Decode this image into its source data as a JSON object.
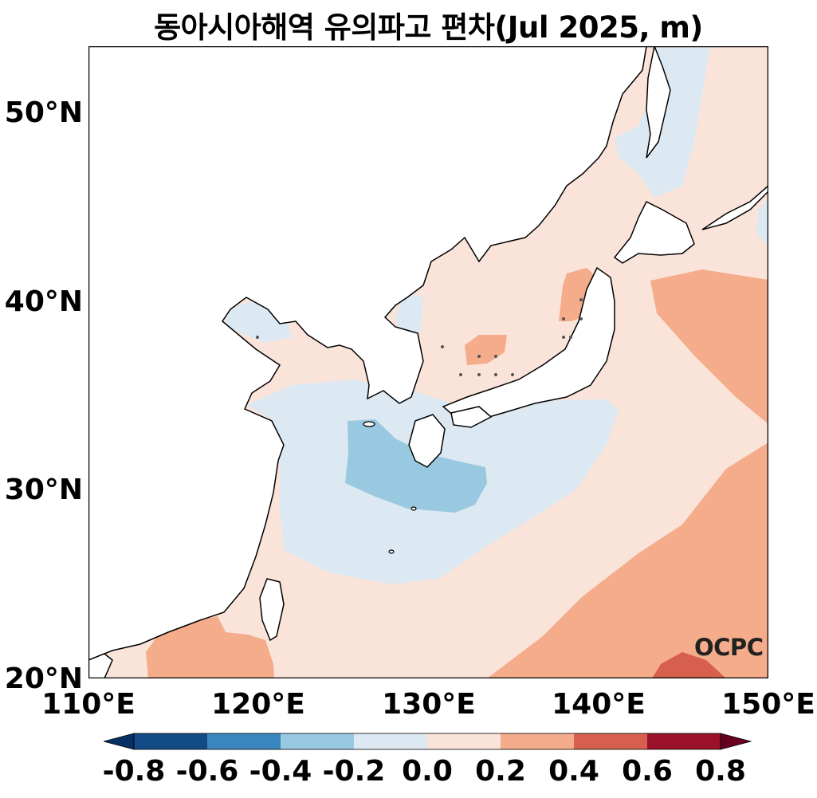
{
  "title": "동아시아해역 유의파고 편차(Jul 2025, m)",
  "logo_text": "OCPC",
  "map": {
    "region": "East Asian Seas",
    "projection": "plate-carree",
    "lat_range": [
      20,
      53.5
    ],
    "lon_range": [
      110,
      150
    ],
    "lat_ticks": [
      {
        "value": 50,
        "label": "50°N"
      },
      {
        "value": 40,
        "label": "40°N"
      },
      {
        "value": 30,
        "label": "30°N"
      },
      {
        "value": 20,
        "label": "20°N"
      }
    ],
    "lon_ticks": [
      {
        "value": 110,
        "label": "110°E"
      },
      {
        "value": 120,
        "label": "120°E"
      },
      {
        "value": 130,
        "label": "130°E"
      },
      {
        "value": 140,
        "label": "140°E"
      },
      {
        "value": 150,
        "label": "150°E"
      }
    ],
    "land_color": "#ffffff",
    "coastline_color": "#000000"
  },
  "colorbar": {
    "min": -0.8,
    "max": 0.8,
    "extend": "both",
    "ticks": [
      {
        "value": -0.8,
        "label": "-0.8"
      },
      {
        "value": -0.6,
        "label": "-0.6"
      },
      {
        "value": -0.4,
        "label": "-0.4"
      },
      {
        "value": -0.2,
        "label": "-0.2"
      },
      {
        "value": 0.0,
        "label": "0.0"
      },
      {
        "value": 0.2,
        "label": "0.2"
      },
      {
        "value": 0.4,
        "label": "0.4"
      },
      {
        "value": 0.6,
        "label": "0.6"
      },
      {
        "value": 0.8,
        "label": "0.8"
      }
    ],
    "colors": {
      "under": "#053061",
      "-0.8_-0.6": "#134b87",
      "-0.6_-0.4": "#3a87bf",
      "-0.4_-0.2": "#99c8e1",
      "-0.2_0.0": "#dde9f2",
      "0.0_0.2": "#fae3d9",
      "0.2_0.4": "#f4ac8a",
      "0.4_0.6": "#d6604d",
      "0.6_0.8": "#9a1129",
      "over": "#67001f"
    }
  }
}
